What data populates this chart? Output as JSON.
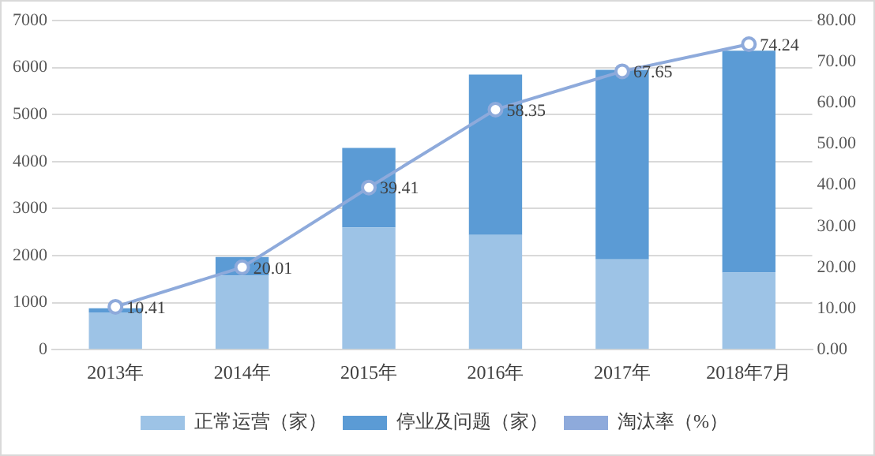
{
  "chart_data": {
    "type": "bar",
    "stacked": true,
    "categories": [
      "2013年",
      "2014年",
      "2015年",
      "2016年",
      "2017年",
      "2018年7月"
    ],
    "series": [
      {
        "name": "正常运营（家）",
        "color": "#9dc3e6",
        "values": [
          790,
          1575,
          2600,
          2440,
          1920,
          1640
        ]
      },
      {
        "name": "停业及问题（家）",
        "color": "#5b9bd5",
        "values": [
          90,
          395,
          1690,
          3410,
          4030,
          4720
        ]
      },
      {
        "name": "淘汰率（%）",
        "type": "line",
        "axis": "y2",
        "color": "#8eaadb",
        "marker": "circle",
        "values": [
          10.41,
          20.01,
          39.41,
          58.35,
          67.65,
          74.24
        ],
        "value_labels": [
          "10.41",
          "20.01",
          "39.41",
          "58.35",
          "67.65",
          "74.24"
        ]
      }
    ],
    "ylim": [
      0,
      7000
    ],
    "yticks": [
      0,
      1000,
      2000,
      3000,
      4000,
      5000,
      6000,
      7000
    ],
    "y2lim": [
      0,
      80
    ],
    "y2ticks": [
      {
        "value": 0,
        "label": "0.00"
      },
      {
        "value": 10,
        "label": "10.00"
      },
      {
        "value": 20,
        "label": "20.00"
      },
      {
        "value": 30,
        "label": "30.00"
      },
      {
        "value": 40,
        "label": "40.00"
      },
      {
        "value": 50,
        "label": "50.00"
      },
      {
        "value": 60,
        "label": "60.00"
      },
      {
        "value": 70,
        "label": "70.00"
      },
      {
        "value": 80,
        "label": "80.00"
      }
    ],
    "grid": "y",
    "legend": "bottom"
  }
}
